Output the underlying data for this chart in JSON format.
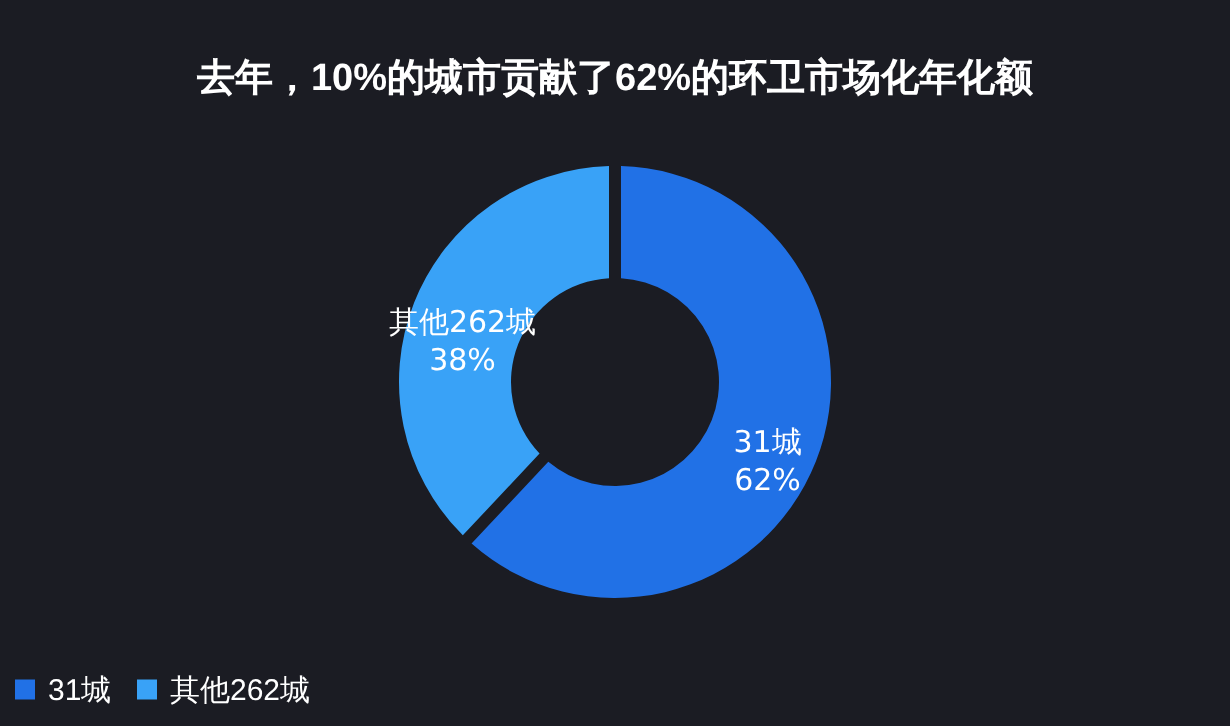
{
  "chart_data": {
    "type": "donut",
    "title": "去年，10%的城市贡献了62%的环卫市场化年化额",
    "categories": [
      "31城",
      "其他262城"
    ],
    "values": [
      62,
      38
    ],
    "colors": [
      "#2171e6",
      "#39a2f7"
    ],
    "value_labels": [
      "62%",
      "38%"
    ],
    "legend": "bottom"
  }
}
